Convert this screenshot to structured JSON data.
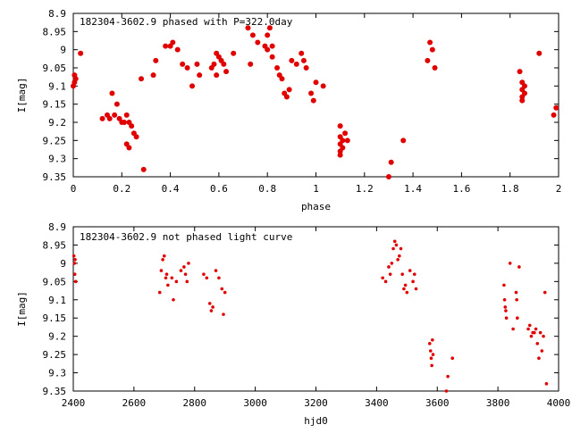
{
  "chart_data": [
    {
      "type": "scatter",
      "title": "182304-3602.9 phased with P=322.0day",
      "xlabel": "phase",
      "ylabel": "I[mag]",
      "xlim": [
        0,
        2
      ],
      "ylim": [
        9.35,
        8.9
      ],
      "y_inverted": true,
      "grid": false,
      "xticks": [
        "0",
        "0.2",
        "0.4",
        "0.6",
        "0.8",
        "1",
        "1.2",
        "1.4",
        "1.6",
        "1.8",
        "2"
      ],
      "xtick_values": [
        0,
        0.2,
        0.4,
        0.6,
        0.8,
        1.0,
        1.2,
        1.4,
        1.6,
        1.8,
        2.0
      ],
      "yticks": [
        "8.9",
        "8.95",
        "9",
        "9.05",
        "9.1",
        "9.15",
        "9.2",
        "9.25",
        "9.3",
        "9.35"
      ],
      "ytick_values": [
        8.9,
        8.95,
        9.0,
        9.05,
        9.1,
        9.15,
        9.2,
        9.25,
        9.3,
        9.35
      ],
      "point_color": "#e00000",
      "point_size": "large",
      "series": [
        {
          "x": [
            0.0,
            0.005,
            0.01,
            0.005,
            0.03,
            0.12,
            0.14,
            0.15,
            0.16,
            0.17,
            0.18,
            0.19,
            0.2,
            0.21,
            0.22,
            0.23,
            0.24,
            0.25,
            0.26,
            0.22,
            0.23,
            0.28,
            0.29,
            0.33,
            0.34,
            0.38,
            0.4,
            0.41,
            0.43,
            0.45,
            0.47,
            0.49,
            0.51,
            0.52,
            0.57,
            0.58,
            0.59,
            0.6,
            0.61,
            0.62,
            0.63,
            0.59,
            0.66,
            0.72,
            0.73,
            0.74,
            0.76,
            0.79,
            0.8,
            0.81,
            0.82,
            0.8,
            0.82,
            0.84,
            0.85,
            0.86,
            0.87,
            0.88,
            0.89,
            0.9,
            0.92,
            0.94,
            0.95,
            0.96,
            0.98,
            0.99,
            1.0,
            1.03,
            1.1,
            1.1,
            1.1,
            1.1,
            1.1,
            1.11,
            1.11,
            1.12,
            1.13,
            1.3,
            1.31,
            1.36,
            1.46,
            1.47,
            1.48,
            1.49,
            1.84,
            1.85,
            1.85,
            1.85,
            1.85,
            1.86,
            1.86,
            1.92,
            1.98,
            1.99
          ],
          "y": [
            9.1,
            9.09,
            9.08,
            9.07,
            9.01,
            9.19,
            9.18,
            9.19,
            9.12,
            9.18,
            9.15,
            9.19,
            9.2,
            9.2,
            9.18,
            9.2,
            9.21,
            9.23,
            9.24,
            9.26,
            9.27,
            9.08,
            9.33,
            9.07,
            9.03,
            8.99,
            8.99,
            8.98,
            9.0,
            9.04,
            9.05,
            9.1,
            9.04,
            9.07,
            9.05,
            9.04,
            9.01,
            9.02,
            9.03,
            9.04,
            9.06,
            9.07,
            9.01,
            8.94,
            9.04,
            8.96,
            8.98,
            8.99,
            8.96,
            8.94,
            8.99,
            9.0,
            9.02,
            9.05,
            9.07,
            9.08,
            9.12,
            9.13,
            9.11,
            9.03,
            9.04,
            9.01,
            9.03,
            9.05,
            9.12,
            9.14,
            9.09,
            9.1,
            9.21,
            9.24,
            9.26,
            9.28,
            9.29,
            9.25,
            9.27,
            9.23,
            9.25,
            9.35,
            9.31,
            9.25,
            9.03,
            8.98,
            9.0,
            9.05,
            9.06,
            9.09,
            9.11,
            9.13,
            9.14,
            9.1,
            9.12,
            9.01,
            9.18,
            9.16
          ]
        }
      ]
    },
    {
      "type": "scatter",
      "title": "182304-3602.9 not phased light curve",
      "xlabel": "hjd0",
      "ylabel": "I[mag]",
      "xlim": [
        2400,
        4000
      ],
      "ylim": [
        9.35,
        8.9
      ],
      "y_inverted": true,
      "grid": false,
      "xticks": [
        "2400",
        "2600",
        "2800",
        "3000",
        "3200",
        "3400",
        "3600",
        "3800",
        "4000"
      ],
      "xtick_values": [
        2400,
        2600,
        2800,
        3000,
        3200,
        3400,
        3600,
        3800,
        4000
      ],
      "yticks": [
        "8.9",
        "8.95",
        "9",
        "9.05",
        "9.1",
        "9.15",
        "9.2",
        "9.25",
        "9.3",
        "9.35"
      ],
      "ytick_values": [
        8.9,
        8.95,
        9.0,
        9.05,
        9.1,
        9.15,
        9.2,
        9.25,
        9.3,
        9.35
      ],
      "point_color": "#e00000",
      "point_size": "small",
      "series": [
        {
          "x": [
            2402,
            2404,
            2405,
            2406,
            2408,
            2685,
            2690,
            2695,
            2700,
            2705,
            2708,
            2712,
            2725,
            2730,
            2740,
            2755,
            2765,
            2770,
            2775,
            2780,
            2830,
            2840,
            2850,
            2855,
            2860,
            2870,
            2880,
            2890,
            2895,
            2900,
            3420,
            3430,
            3440,
            3445,
            3450,
            3455,
            3460,
            3465,
            3470,
            3475,
            3480,
            3485,
            3490,
            3495,
            3500,
            3510,
            3520,
            3525,
            3530,
            3575,
            3578,
            3580,
            3582,
            3584,
            3586,
            3630,
            3635,
            3650,
            3820,
            3822,
            3824,
            3826,
            3828,
            3840,
            3850,
            3860,
            3862,
            3864,
            3870,
            3900,
            3905,
            3910,
            3915,
            3920,
            3925,
            3930,
            3935,
            3940,
            3945,
            3950,
            3955,
            3960
          ],
          "y": [
            8.98,
            9.0,
            9.03,
            8.99,
            9.05,
            9.08,
            9.02,
            8.99,
            8.98,
            9.04,
            9.03,
            9.06,
            9.04,
            9.1,
            9.05,
            9.02,
            9.01,
            9.03,
            9.05,
            9.0,
            9.03,
            9.04,
            9.11,
            9.13,
            9.12,
            9.02,
            9.04,
            9.07,
            9.14,
            9.08,
            9.04,
            9.05,
            9.01,
            9.03,
            9.0,
            8.96,
            8.94,
            8.95,
            8.99,
            8.98,
            8.96,
            9.03,
            9.07,
            9.06,
            9.08,
            9.02,
            9.05,
            9.03,
            9.07,
            9.22,
            9.24,
            9.26,
            9.28,
            9.21,
            9.25,
            9.35,
            9.31,
            9.26,
            9.06,
            9.1,
            9.12,
            9.13,
            9.15,
            9.0,
            9.18,
            9.08,
            9.1,
            9.15,
            9.01,
            9.18,
            9.17,
            9.2,
            9.19,
            9.19,
            9.18,
            9.22,
            9.26,
            9.19,
            9.24,
            9.2,
            9.08,
            9.33
          ]
        }
      ]
    }
  ]
}
